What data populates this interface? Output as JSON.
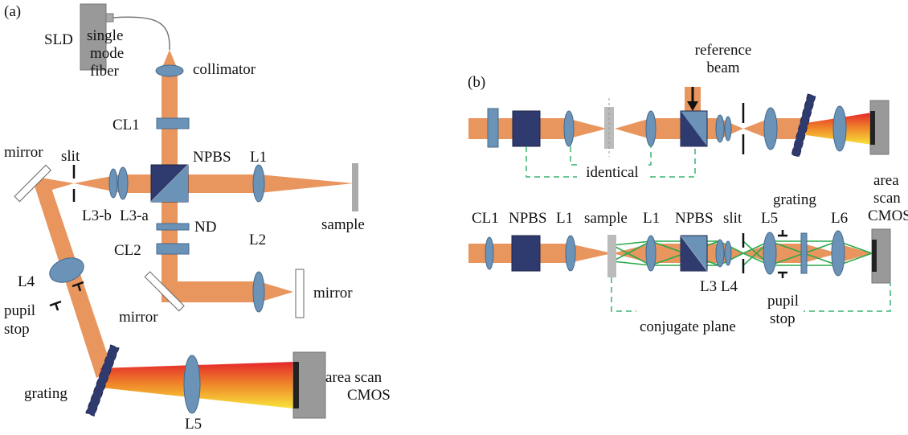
{
  "panel_a": {
    "label": "(a)",
    "sld": "SLD",
    "fiber": [
      "single",
      "mode",
      "fiber"
    ],
    "collimator": "collimator",
    "cl1": "CL1",
    "npbs": "NPBS",
    "l1": "L1",
    "mirror_left": "mirror",
    "slit": "slit",
    "l3b": "L3-b",
    "l3a": "L3-a",
    "nd": "ND",
    "sample": "sample",
    "cl2": "CL2",
    "l2": "L2",
    "mirror_right": "mirror",
    "mirror_bottom": "mirror",
    "l4": "L4",
    "pupil_stop": [
      "pupil",
      "stop"
    ],
    "grating": "grating",
    "l5": "L5",
    "camera": [
      "area scan",
      "CMOS"
    ]
  },
  "panel_b": {
    "label": "(b)",
    "reference_beam": [
      "reference",
      "beam"
    ],
    "identical": "identical",
    "cl1": "CL1",
    "npbs_1": "NPBS",
    "l1_1": "L1",
    "sample": "sample",
    "l1_2": "L1",
    "npbs_2": "NPBS",
    "slit": "slit",
    "l5": "L5",
    "grating": "grating",
    "l6": "L6",
    "camera": [
      "area",
      "scan",
      "CMOS"
    ],
    "l3_l4": "L3 L4",
    "pupil_stop": [
      "pupil",
      "stop"
    ],
    "conjugate_plane": "conjugate plane"
  }
}
